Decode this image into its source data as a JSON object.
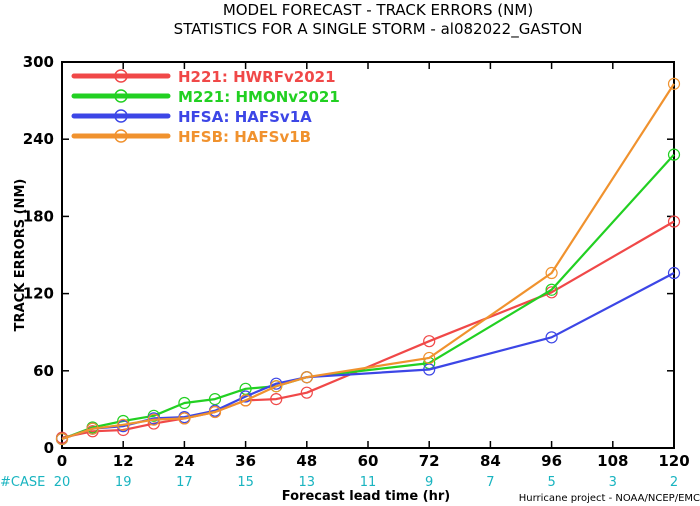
{
  "chart_data": {
    "type": "line",
    "title": "MODEL FORECAST - TRACK ERRORS (NM)",
    "subtitle": "STATISTICS FOR A SINGLE STORM - al082022_GASTON",
    "xlabel": "Forecast lead time (hr)",
    "ylabel": "TRACK ERRORS (NM)",
    "xlim": [
      0,
      120
    ],
    "ylim": [
      0,
      300
    ],
    "x_ticks": [
      "0",
      "12",
      "24",
      "36",
      "48",
      "60",
      "72",
      "84",
      "96",
      "108",
      "120"
    ],
    "y_ticks": [
      "0",
      "60",
      "120",
      "180",
      "240",
      "300"
    ],
    "case_label": "#CASE",
    "case_x": [
      0,
      12,
      24,
      36,
      48,
      60,
      72,
      84,
      96,
      108,
      120
    ],
    "case_counts": [
      "20",
      "19",
      "17",
      "15",
      "13",
      "11",
      "9",
      "7",
      "5",
      "3",
      "2"
    ],
    "credit": "Hurricane project - NOAA/NCEP/EMC",
    "legend_position": "top-left",
    "series": [
      {
        "name": "H221: HWRFv2021",
        "color": "#f04848",
        "x": [
          0,
          6,
          12,
          18,
          24,
          30,
          36,
          42,
          48,
          72,
          96,
          120
        ],
        "values": [
          8,
          13,
          14,
          19,
          23,
          28,
          37,
          38,
          43,
          83,
          121,
          176
        ]
      },
      {
        "name": "M221: HMONv2021",
        "color": "#22d022",
        "x": [
          0,
          6,
          12,
          18,
          24,
          30,
          36,
          42,
          48,
          72,
          96,
          120
        ],
        "values": [
          7,
          16,
          21,
          25,
          35,
          38,
          46,
          48,
          55,
          66,
          123,
          228
        ]
      },
      {
        "name": "HFSA: HAFSv1A",
        "color": "#3c46e6",
        "x": [
          0,
          6,
          12,
          18,
          24,
          30,
          36,
          42,
          48,
          72,
          96,
          120
        ],
        "values": [
          7,
          15,
          17,
          23,
          24,
          29,
          40,
          50,
          55,
          61,
          86,
          136
        ]
      },
      {
        "name": "HFSB: HAFSv1B",
        "color": "#f0922e",
        "x": [
          0,
          6,
          12,
          18,
          24,
          30,
          36,
          42,
          48,
          72,
          96,
          120
        ],
        "values": [
          7,
          15,
          18,
          22,
          23,
          28,
          37,
          48,
          55,
          70,
          136,
          283
        ]
      }
    ]
  }
}
